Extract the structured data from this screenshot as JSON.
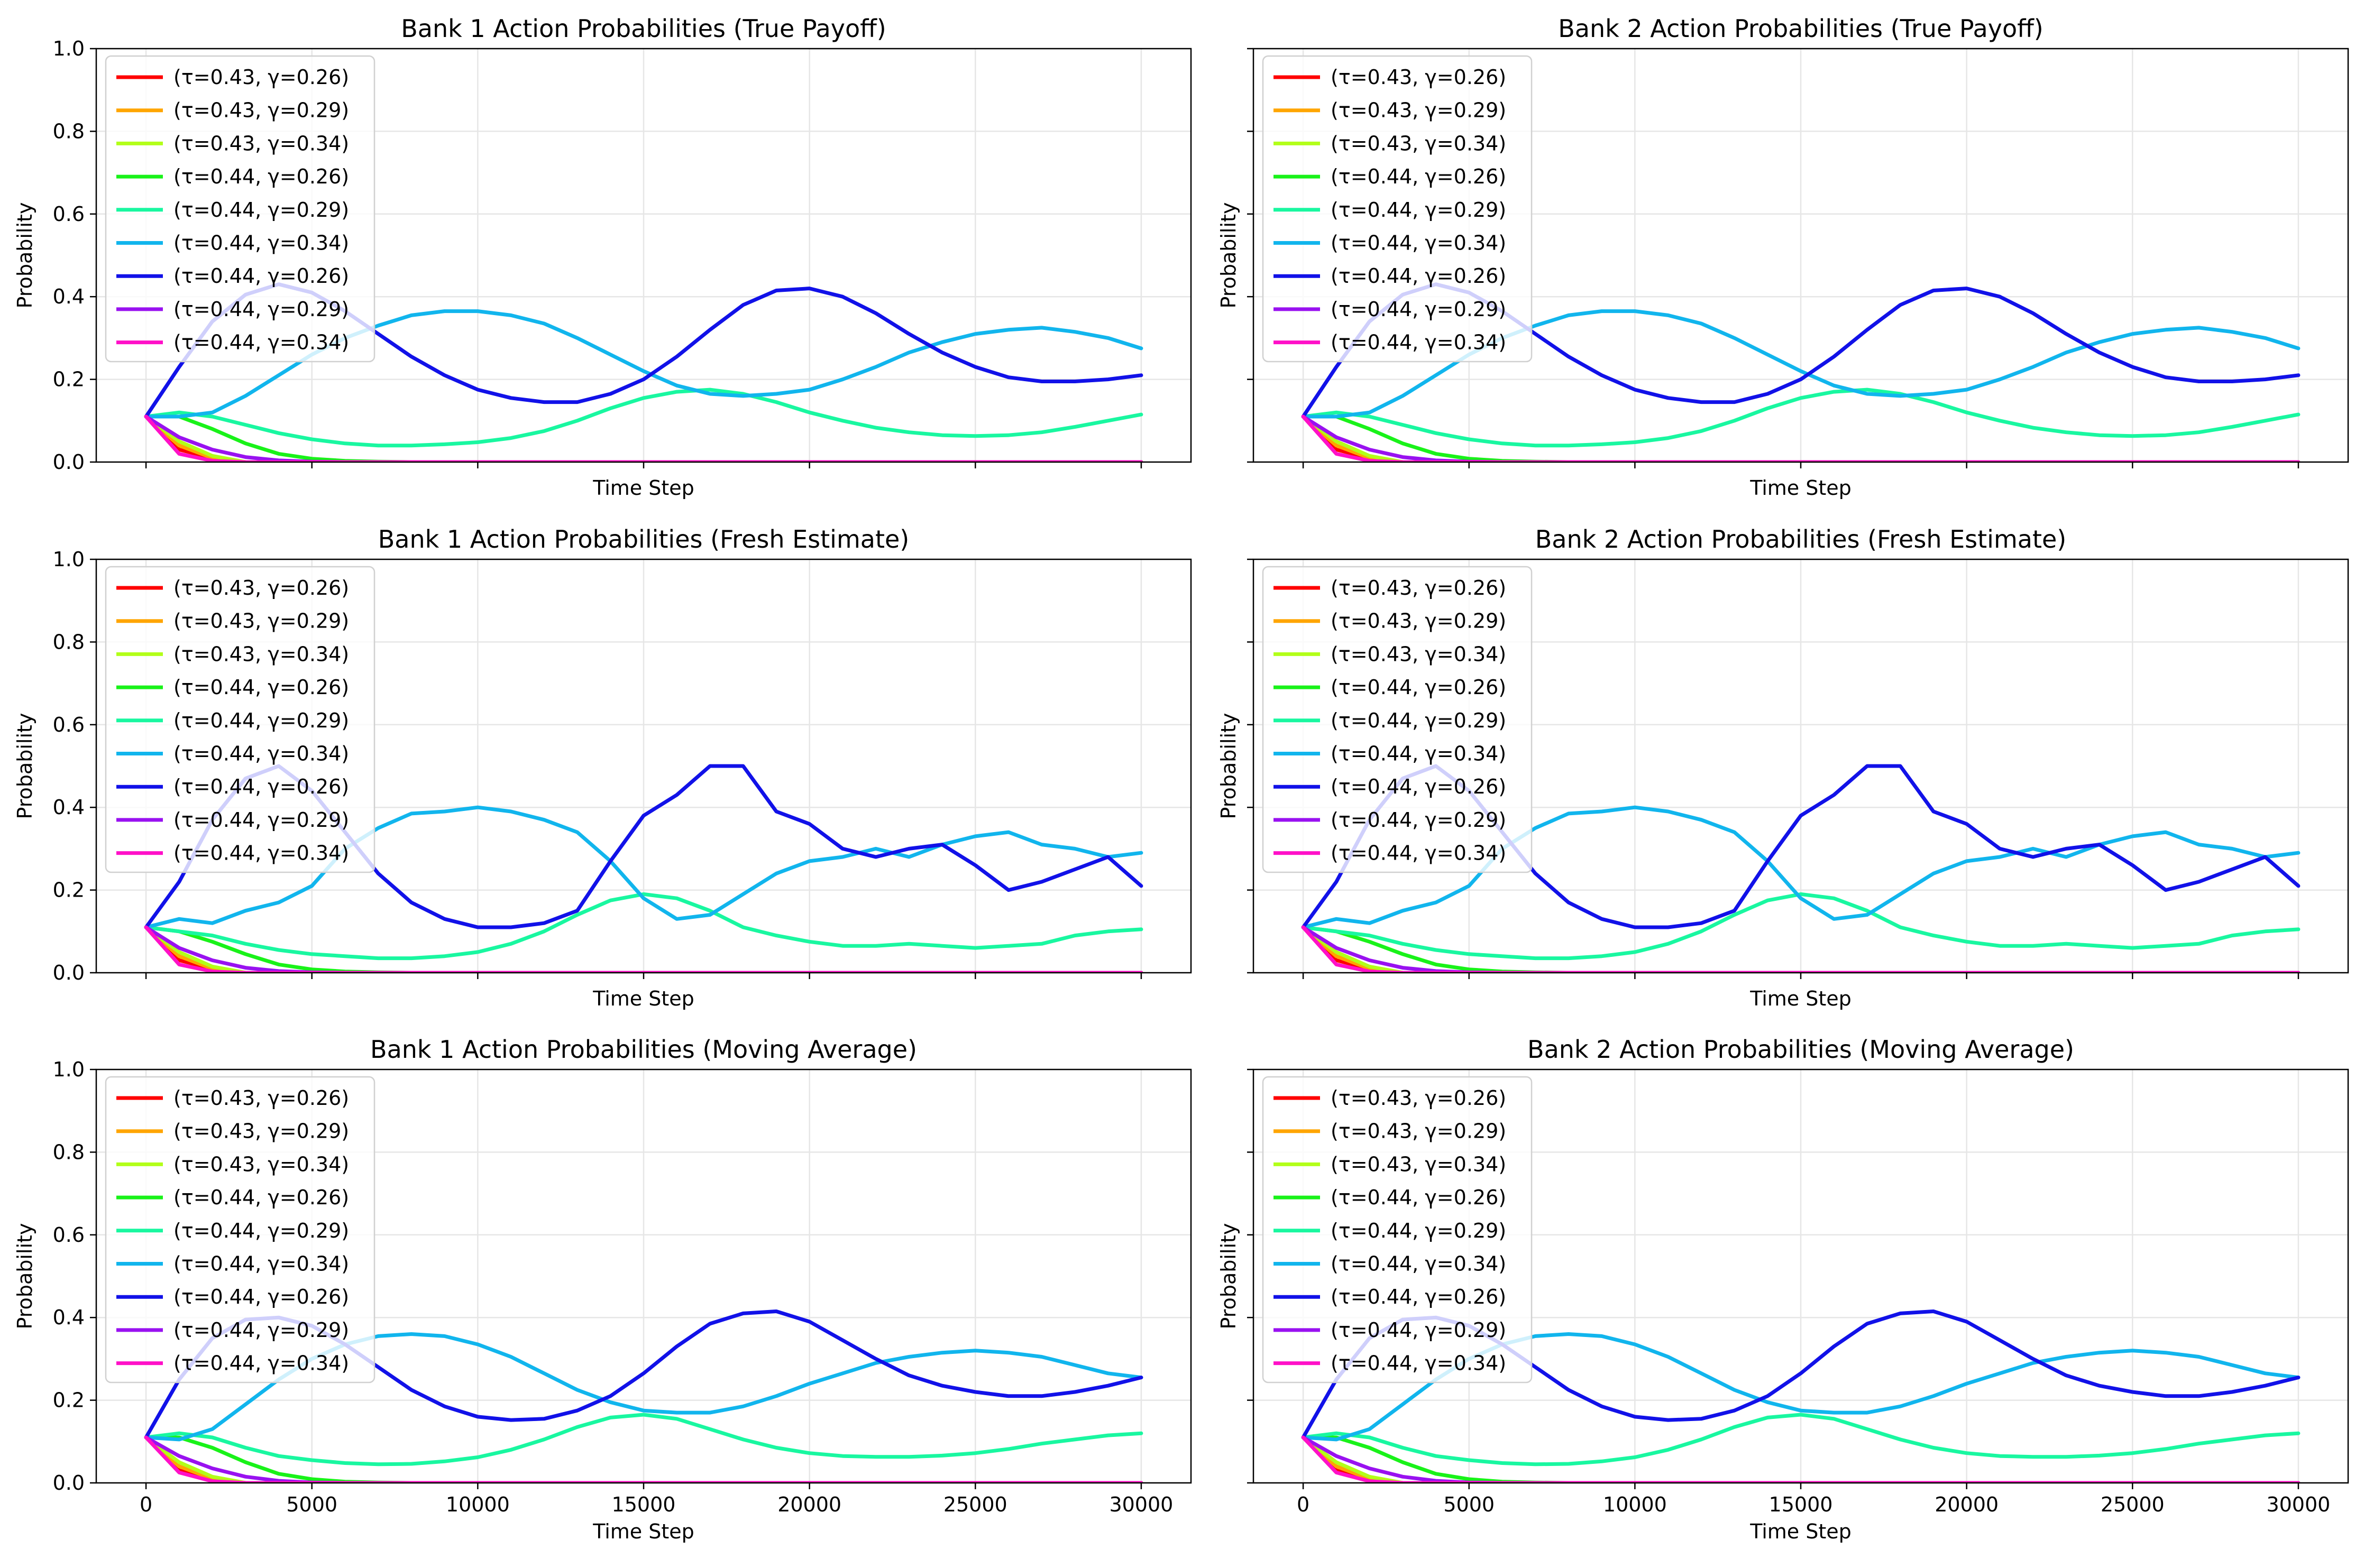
{
  "figure": {
    "panels": [
      {
        "id": "b1-true",
        "title": "Bank 1 Action Probabilities (True Payoff)",
        "row": 0,
        "col": 0
      },
      {
        "id": "b2-true",
        "title": "Bank 2 Action Probabilities (True Payoff)",
        "row": 0,
        "col": 1
      },
      {
        "id": "b1-fresh",
        "title": "Bank 1 Action Probabilities (Fresh Estimate)",
        "row": 1,
        "col": 0
      },
      {
        "id": "b2-fresh",
        "title": "Bank 2 Action Probabilities (Fresh Estimate)",
        "row": 1,
        "col": 1
      },
      {
        "id": "b1-ma",
        "title": "Bank 1 Action Probabilities (Moving Average)",
        "row": 2,
        "col": 0
      },
      {
        "id": "b2-ma",
        "title": "Bank 2 Action Probabilities (Moving Average)",
        "row": 2,
        "col": 1
      }
    ],
    "xlabel": "Time Step",
    "ylabel": "Probability",
    "xlim": [
      -1500,
      31500
    ],
    "ylim": [
      0,
      1.0
    ],
    "xticks": [
      0,
      5000,
      10000,
      15000,
      20000,
      25000,
      30000
    ],
    "yticks": [
      "0.0",
      "0.2",
      "0.4",
      "0.6",
      "0.8",
      "1.0"
    ],
    "grid": true,
    "legend_position": "upper-left",
    "legend": [
      {
        "label": "(τ=0.43, γ=0.26)",
        "color": "#ff0000"
      },
      {
        "label": "(τ=0.43, γ=0.29)",
        "color": "#ffa500"
      },
      {
        "label": "(τ=0.43, γ=0.34)",
        "color": "#b2ff19"
      },
      {
        "label": "(τ=0.44, γ=0.26)",
        "color": "#19f219"
      },
      {
        "label": "(τ=0.44, γ=0.29)",
        "color": "#19f7a0"
      },
      {
        "label": "(τ=0.44, γ=0.34)",
        "color": "#11b5ed"
      },
      {
        "label": "(τ=0.44, γ=0.26)",
        "color": "#1111e8"
      },
      {
        "label": "(τ=0.44, γ=0.29)",
        "color": "#9911f0"
      },
      {
        "label": "(τ=0.44, γ=0.34)",
        "color": "#ff10c8"
      }
    ]
  },
  "chart_data": {
    "type": "line",
    "x": [
      0,
      1000,
      2000,
      3000,
      4000,
      5000,
      6000,
      7000,
      8000,
      9000,
      10000,
      11000,
      12000,
      13000,
      14000,
      15000,
      16000,
      17000,
      18000,
      19000,
      20000,
      21000,
      22000,
      23000,
      24000,
      25000,
      26000,
      27000,
      28000,
      29000,
      30000
    ],
    "variants": {
      "true": {
        "series": [
          {
            "values": [
              0.11,
              0.03,
              0.01,
              0,
              0,
              0,
              0,
              0,
              0,
              0,
              0,
              0,
              0,
              0,
              0,
              0,
              0,
              0,
              0,
              0,
              0,
              0,
              0,
              0,
              0,
              0,
              0,
              0,
              0,
              0,
              0
            ]
          },
          {
            "values": [
              0.11,
              0.04,
              0.01,
              0,
              0,
              0,
              0,
              0,
              0,
              0,
              0,
              0,
              0,
              0,
              0,
              0,
              0,
              0,
              0,
              0,
              0,
              0,
              0,
              0,
              0,
              0,
              0,
              0,
              0,
              0,
              0
            ]
          },
          {
            "values": [
              0.11,
              0.05,
              0.015,
              0,
              0,
              0,
              0,
              0,
              0,
              0,
              0,
              0,
              0,
              0,
              0,
              0,
              0,
              0,
              0,
              0,
              0,
              0,
              0,
              0,
              0,
              0,
              0,
              0,
              0,
              0,
              0
            ]
          },
          {
            "values": [
              0.11,
              0.11,
              0.08,
              0.045,
              0.02,
              0.008,
              0.003,
              0.001,
              0,
              0,
              0,
              0,
              0,
              0,
              0,
              0,
              0,
              0,
              0,
              0,
              0,
              0,
              0,
              0,
              0,
              0,
              0,
              0,
              0,
              0,
              0
            ]
          },
          {
            "values": [
              0.11,
              0.12,
              0.11,
              0.09,
              0.07,
              0.055,
              0.045,
              0.04,
              0.04,
              0.043,
              0.048,
              0.058,
              0.075,
              0.1,
              0.13,
              0.155,
              0.17,
              0.175,
              0.165,
              0.145,
              0.12,
              0.1,
              0.083,
              0.072,
              0.065,
              0.063,
              0.065,
              0.072,
              0.085,
              0.1,
              0.115
            ]
          },
          {
            "values": [
              0.11,
              0.11,
              0.12,
              0.16,
              0.21,
              0.26,
              0.3,
              0.33,
              0.355,
              0.365,
              0.365,
              0.355,
              0.335,
              0.3,
              0.26,
              0.22,
              0.185,
              0.165,
              0.16,
              0.165,
              0.175,
              0.2,
              0.23,
              0.265,
              0.29,
              0.31,
              0.32,
              0.325,
              0.315,
              0.3,
              0.275
            ]
          },
          {
            "values": [
              0.11,
              0.23,
              0.34,
              0.405,
              0.43,
              0.41,
              0.365,
              0.31,
              0.255,
              0.21,
              0.175,
              0.155,
              0.145,
              0.145,
              0.165,
              0.2,
              0.255,
              0.32,
              0.38,
              0.415,
              0.42,
              0.4,
              0.36,
              0.31,
              0.265,
              0.23,
              0.205,
              0.195,
              0.195,
              0.2,
              0.21
            ]
          },
          {
            "values": [
              0.11,
              0.06,
              0.03,
              0.012,
              0.004,
              0.001,
              0,
              0,
              0,
              0,
              0,
              0,
              0,
              0,
              0,
              0,
              0,
              0,
              0,
              0,
              0,
              0,
              0,
              0,
              0,
              0,
              0,
              0,
              0,
              0,
              0
            ]
          },
          {
            "values": [
              0.11,
              0.02,
              0.003,
              0,
              0,
              0,
              0,
              0,
              0,
              0,
              0,
              0,
              0,
              0,
              0,
              0,
              0,
              0,
              0,
              0,
              0,
              0,
              0,
              0,
              0,
              0,
              0,
              0,
              0,
              0,
              0
            ]
          }
        ]
      },
      "fresh": {
        "series": [
          {
            "values": [
              0.11,
              0.03,
              0.01,
              0,
              0,
              0,
              0,
              0,
              0,
              0,
              0,
              0,
              0,
              0,
              0,
              0,
              0,
              0,
              0,
              0,
              0,
              0,
              0,
              0,
              0,
              0,
              0,
              0,
              0,
              0,
              0
            ]
          },
          {
            "values": [
              0.11,
              0.04,
              0.01,
              0,
              0,
              0,
              0,
              0,
              0,
              0,
              0,
              0,
              0,
              0,
              0,
              0,
              0,
              0,
              0,
              0,
              0,
              0,
              0,
              0,
              0,
              0,
              0,
              0,
              0,
              0,
              0
            ]
          },
          {
            "values": [
              0.11,
              0.05,
              0.015,
              0,
              0,
              0,
              0,
              0,
              0,
              0,
              0,
              0,
              0,
              0,
              0,
              0,
              0,
              0,
              0,
              0,
              0,
              0,
              0,
              0,
              0,
              0,
              0,
              0,
              0,
              0,
              0
            ]
          },
          {
            "values": [
              0.11,
              0.1,
              0.075,
              0.045,
              0.02,
              0.008,
              0.003,
              0.001,
              0,
              0,
              0,
              0,
              0,
              0,
              0,
              0,
              0,
              0,
              0,
              0,
              0,
              0,
              0,
              0,
              0,
              0,
              0,
              0,
              0,
              0,
              0
            ]
          },
          {
            "values": [
              0.11,
              0.1,
              0.09,
              0.07,
              0.055,
              0.045,
              0.04,
              0.035,
              0.035,
              0.04,
              0.05,
              0.07,
              0.1,
              0.14,
              0.175,
              0.19,
              0.18,
              0.15,
              0.11,
              0.09,
              0.075,
              0.065,
              0.065,
              0.07,
              0.065,
              0.06,
              0.065,
              0.07,
              0.09,
              0.1,
              0.105
            ]
          },
          {
            "values": [
              0.11,
              0.13,
              0.12,
              0.15,
              0.17,
              0.21,
              0.3,
              0.35,
              0.385,
              0.39,
              0.4,
              0.39,
              0.37,
              0.34,
              0.27,
              0.18,
              0.13,
              0.14,
              0.19,
              0.24,
              0.27,
              0.28,
              0.3,
              0.28,
              0.31,
              0.33,
              0.34,
              0.31,
              0.3,
              0.28,
              0.29
            ]
          },
          {
            "values": [
              0.11,
              0.22,
              0.37,
              0.47,
              0.5,
              0.44,
              0.34,
              0.24,
              0.17,
              0.13,
              0.11,
              0.11,
              0.12,
              0.15,
              0.27,
              0.38,
              0.43,
              0.5,
              0.5,
              0.39,
              0.36,
              0.3,
              0.28,
              0.3,
              0.31,
              0.26,
              0.2,
              0.22,
              0.25,
              0.28,
              0.21
            ]
          },
          {
            "values": [
              0.11,
              0.06,
              0.03,
              0.012,
              0.004,
              0.001,
              0,
              0,
              0,
              0,
              0,
              0,
              0,
              0,
              0,
              0,
              0,
              0,
              0,
              0,
              0,
              0,
              0,
              0,
              0,
              0,
              0,
              0,
              0,
              0,
              0
            ]
          },
          {
            "values": [
              0.11,
              0.02,
              0.003,
              0,
              0,
              0,
              0,
              0,
              0,
              0,
              0,
              0,
              0,
              0,
              0,
              0,
              0,
              0,
              0,
              0,
              0,
              0,
              0,
              0,
              0,
              0,
              0,
              0,
              0,
              0,
              0
            ]
          }
        ]
      },
      "moving_average": {
        "series": [
          {
            "values": [
              0.11,
              0.03,
              0.01,
              0,
              0,
              0,
              0,
              0,
              0,
              0,
              0,
              0,
              0,
              0,
              0,
              0,
              0,
              0,
              0,
              0,
              0,
              0,
              0,
              0,
              0,
              0,
              0,
              0,
              0,
              0,
              0
            ]
          },
          {
            "values": [
              0.11,
              0.04,
              0.01,
              0,
              0,
              0,
              0,
              0,
              0,
              0,
              0,
              0,
              0,
              0,
              0,
              0,
              0,
              0,
              0,
              0,
              0,
              0,
              0,
              0,
              0,
              0,
              0,
              0,
              0,
              0,
              0
            ]
          },
          {
            "values": [
              0.11,
              0.05,
              0.015,
              0,
              0,
              0,
              0,
              0,
              0,
              0,
              0,
              0,
              0,
              0,
              0,
              0,
              0,
              0,
              0,
              0,
              0,
              0,
              0,
              0,
              0,
              0,
              0,
              0,
              0,
              0,
              0
            ]
          },
          {
            "values": [
              0.11,
              0.11,
              0.085,
              0.05,
              0.022,
              0.009,
              0.003,
              0.001,
              0,
              0,
              0,
              0,
              0,
              0,
              0,
              0,
              0,
              0,
              0,
              0,
              0,
              0,
              0,
              0,
              0,
              0,
              0,
              0,
              0,
              0,
              0
            ]
          },
          {
            "values": [
              0.11,
              0.12,
              0.11,
              0.085,
              0.065,
              0.055,
              0.048,
              0.045,
              0.046,
              0.052,
              0.062,
              0.08,
              0.105,
              0.135,
              0.158,
              0.165,
              0.155,
              0.13,
              0.105,
              0.085,
              0.072,
              0.065,
              0.063,
              0.063,
              0.066,
              0.072,
              0.082,
              0.095,
              0.105,
              0.115,
              0.12
            ]
          },
          {
            "values": [
              0.11,
              0.105,
              0.13,
              0.19,
              0.25,
              0.3,
              0.335,
              0.355,
              0.36,
              0.355,
              0.335,
              0.305,
              0.265,
              0.225,
              0.195,
              0.175,
              0.17,
              0.17,
              0.185,
              0.21,
              0.24,
              0.265,
              0.29,
              0.305,
              0.315,
              0.32,
              0.315,
              0.305,
              0.285,
              0.265,
              0.255
            ]
          },
          {
            "values": [
              0.11,
              0.25,
              0.35,
              0.395,
              0.4,
              0.38,
              0.335,
              0.28,
              0.225,
              0.185,
              0.16,
              0.152,
              0.155,
              0.175,
              0.21,
              0.265,
              0.33,
              0.385,
              0.41,
              0.415,
              0.39,
              0.345,
              0.3,
              0.26,
              0.235,
              0.22,
              0.21,
              0.21,
              0.22,
              0.235,
              0.255
            ]
          },
          {
            "values": [
              0.11,
              0.065,
              0.035,
              0.015,
              0.005,
              0.001,
              0,
              0,
              0,
              0,
              0,
              0,
              0,
              0,
              0,
              0,
              0,
              0,
              0,
              0,
              0,
              0,
              0,
              0,
              0,
              0,
              0,
              0,
              0,
              0,
              0
            ]
          },
          {
            "values": [
              0.11,
              0.025,
              0.004,
              0,
              0,
              0,
              0,
              0,
              0,
              0,
              0,
              0,
              0,
              0,
              0,
              0,
              0,
              0,
              0,
              0,
              0,
              0,
              0,
              0,
              0,
              0,
              0,
              0,
              0,
              0,
              0
            ]
          }
        ]
      }
    }
  }
}
